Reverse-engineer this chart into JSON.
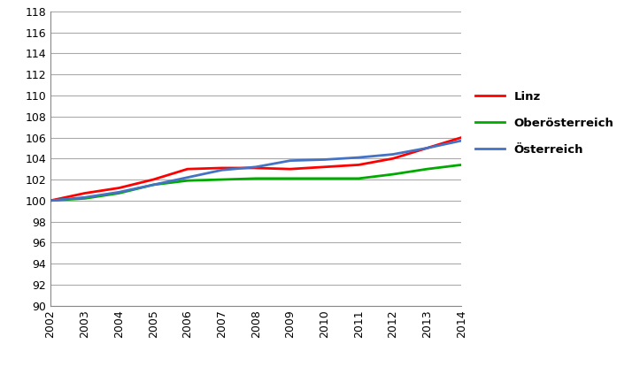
{
  "years": [
    2002,
    2003,
    2004,
    2005,
    2006,
    2007,
    2008,
    2009,
    2010,
    2011,
    2012,
    2013,
    2014
  ],
  "linz": [
    100.0,
    100.7,
    101.2,
    102.0,
    103.0,
    103.1,
    103.1,
    103.0,
    103.2,
    103.4,
    104.0,
    105.0,
    106.0
  ],
  "oberoesterreich": [
    100.0,
    100.2,
    100.7,
    101.5,
    101.9,
    102.0,
    102.1,
    102.1,
    102.1,
    102.1,
    102.5,
    103.0,
    103.4
  ],
  "oesterreich": [
    100.0,
    100.3,
    100.8,
    101.5,
    102.2,
    102.9,
    103.2,
    103.8,
    103.9,
    104.1,
    104.4,
    105.0,
    105.7
  ],
  "linz_color": "#FF0000",
  "oberoesterreich_color": "#00AA00",
  "oesterreich_color": "#4472C4",
  "ylim": [
    90,
    118
  ],
  "yticks": [
    90,
    92,
    94,
    96,
    98,
    100,
    102,
    104,
    106,
    108,
    110,
    112,
    114,
    116,
    118
  ],
  "legend_labels": [
    "Linz",
    "Oberösterreich",
    "Österreich"
  ],
  "background_color": "#FFFFFF",
  "line_width": 2.0,
  "grid_color": "#AAAAAA",
  "spine_color": "#888888"
}
